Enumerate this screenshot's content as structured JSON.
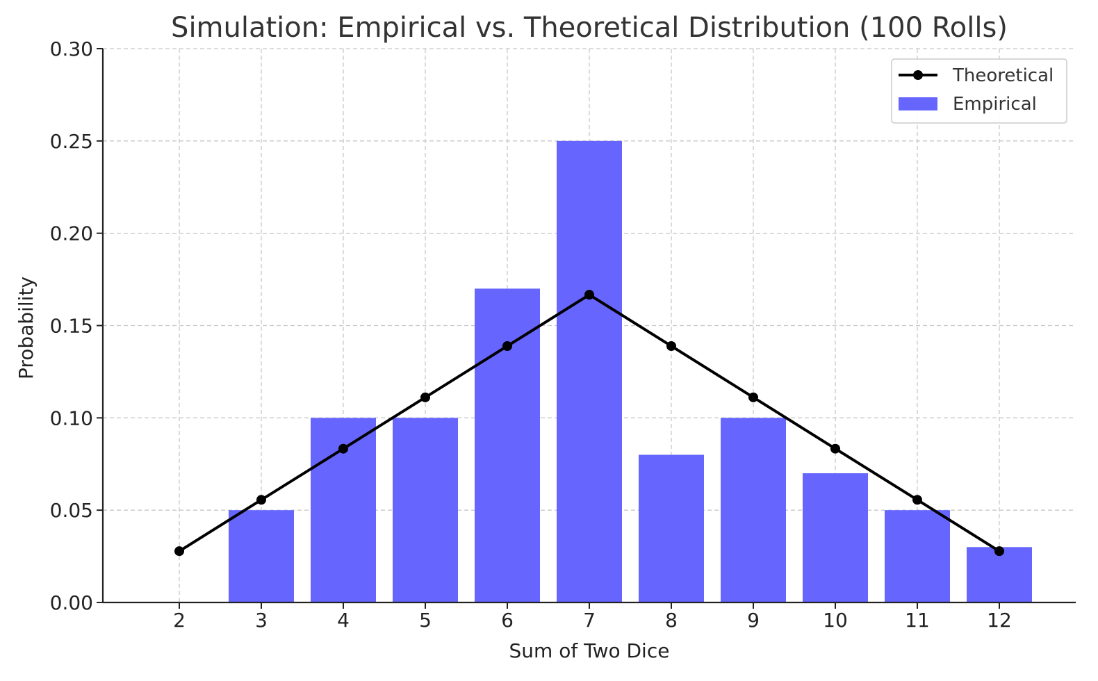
{
  "chart_data": {
    "type": "bar",
    "title": "Simulation: Empirical vs. Theoretical Distribution (100 Rolls)",
    "xlabel": "Sum of Two Dice",
    "ylabel": "Probability",
    "categories": [
      "2",
      "3",
      "4",
      "5",
      "6",
      "7",
      "8",
      "9",
      "10",
      "11",
      "12"
    ],
    "x": [
      2,
      3,
      4,
      5,
      6,
      7,
      8,
      9,
      10,
      11,
      12
    ],
    "ylim": [
      0,
      0.3
    ],
    "yticks": [
      0.0,
      0.05,
      0.1,
      0.15,
      0.2,
      0.25,
      0.3
    ],
    "ytick_labels": [
      "0.00",
      "0.05",
      "0.10",
      "0.15",
      "0.20",
      "0.25",
      "0.30"
    ],
    "grid": true,
    "legend_position": "top-right",
    "series": [
      {
        "name": "Empirical",
        "type": "bar",
        "color": "#6666ff",
        "values": [
          0.0,
          0.05,
          0.1,
          0.1,
          0.17,
          0.25,
          0.08,
          0.1,
          0.07,
          0.05,
          0.03
        ]
      },
      {
        "name": "Theoretical",
        "type": "line",
        "color": "#000000",
        "marker": "circle",
        "values": [
          0.0278,
          0.0556,
          0.0833,
          0.1111,
          0.1389,
          0.1667,
          0.1389,
          0.1111,
          0.0833,
          0.0556,
          0.0278
        ]
      }
    ],
    "legend": [
      {
        "label": "Theoretical",
        "kind": "line-marker",
        "color": "#000000"
      },
      {
        "label": "Empirical",
        "kind": "patch",
        "color": "#6666ff"
      }
    ]
  }
}
